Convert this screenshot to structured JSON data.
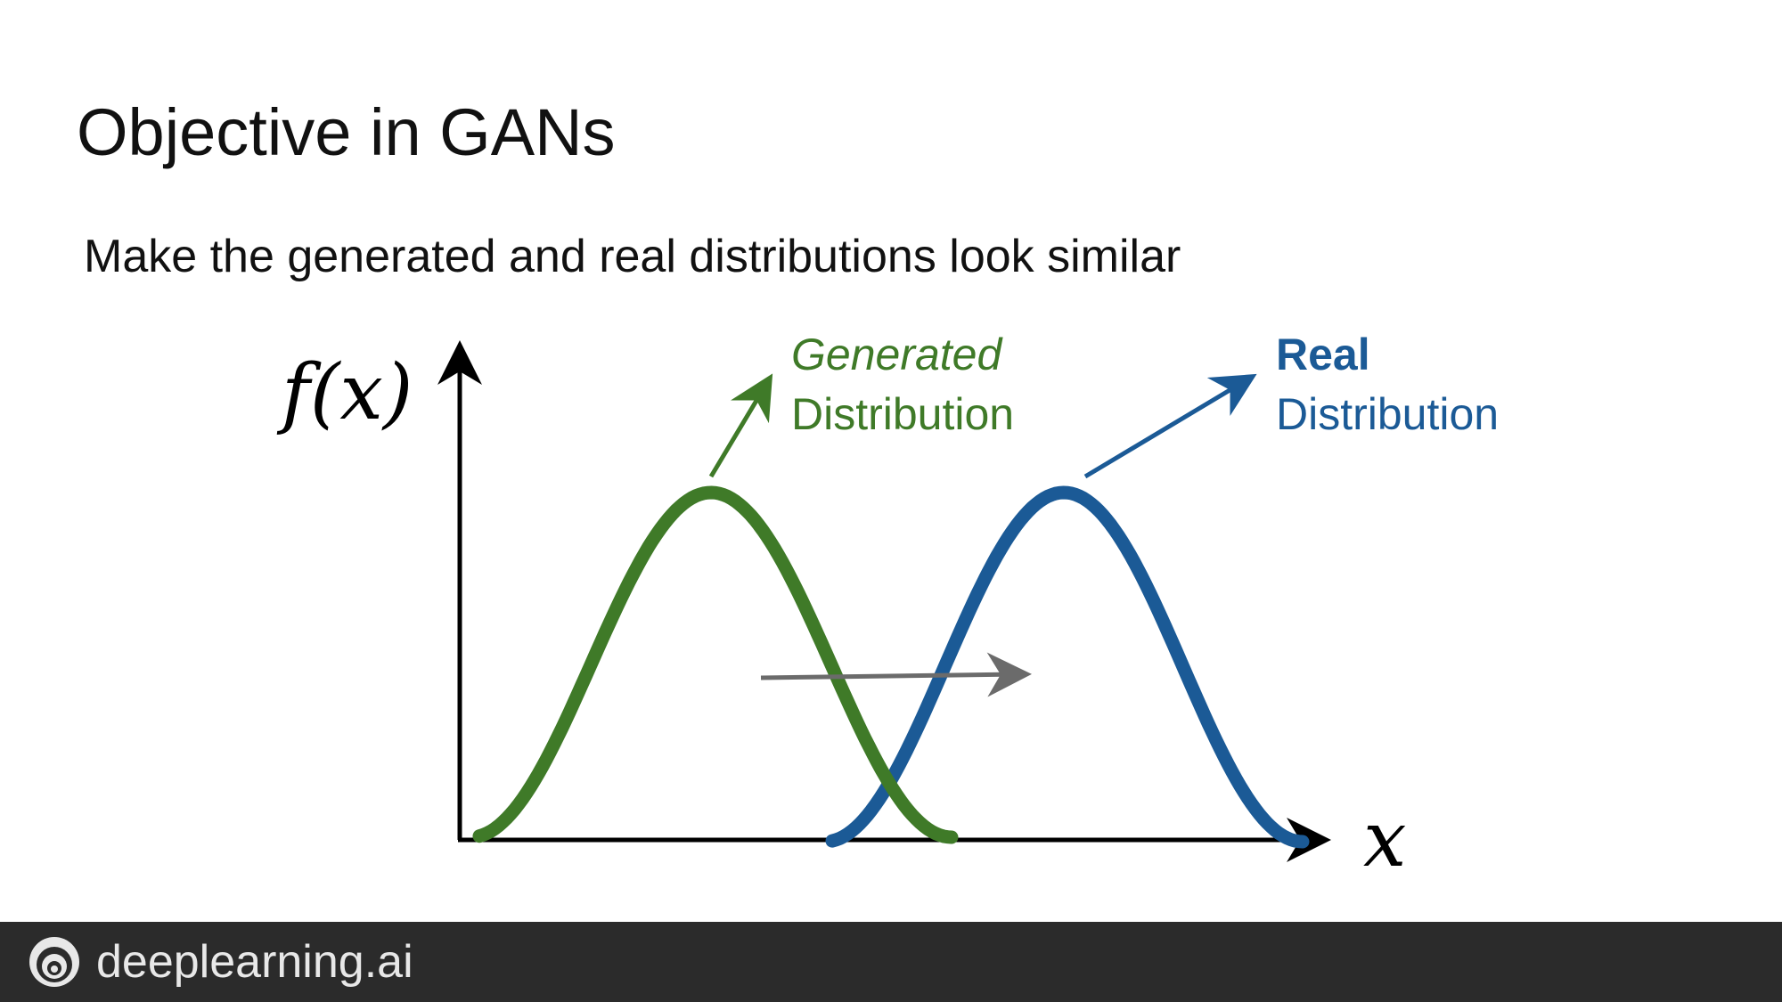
{
  "slide": {
    "title": "Objective in GANs",
    "subtitle": "Make the generated and real distributions look similar"
  },
  "diagram": {
    "y_axis_label": "f(x)",
    "x_axis_label": "x",
    "generated": {
      "line1": "Generated",
      "line2": "Distribution",
      "color": "#3f7a28"
    },
    "real": {
      "line1": "Real",
      "line2": "Distribution",
      "color": "#1b5a96"
    },
    "shift_arrow_color": "#6b6b6b",
    "axis_color": "#000000"
  },
  "footer": {
    "brand": "deeplearning.ai",
    "logo_icon": "deeplearning-logo-icon",
    "background": "#2b2b2b"
  }
}
